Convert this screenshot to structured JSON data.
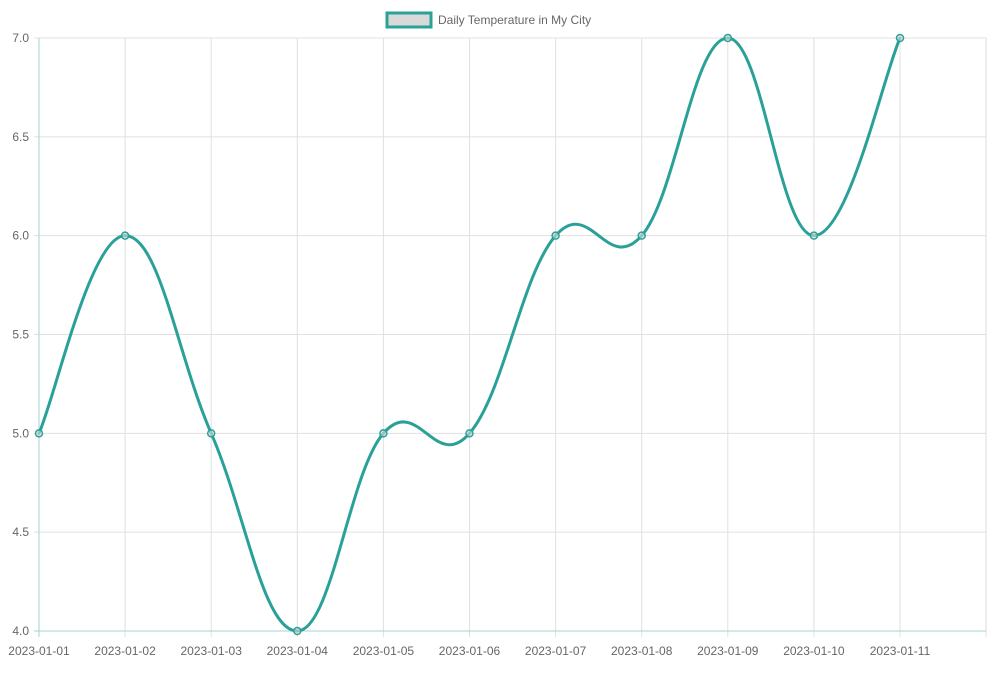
{
  "chart_data": {
    "type": "line",
    "title": "",
    "xlabel": "",
    "ylabel": "",
    "categories": [
      "2023-01-01",
      "2023-01-02",
      "2023-01-03",
      "2023-01-04",
      "2023-01-05",
      "2023-01-06",
      "2023-01-07",
      "2023-01-08",
      "2023-01-09",
      "2023-01-10",
      "2023-01-11"
    ],
    "series": [
      {
        "name": "Daily Temperature in My City",
        "values": [
          5,
          6,
          5,
          4,
          5,
          5,
          6,
          6,
          7,
          6,
          7
        ],
        "color": "#2aa198"
      }
    ],
    "ylim": [
      4.0,
      7.0
    ],
    "y_ticks": [
      "4.0",
      "4.5",
      "5.0",
      "5.5",
      "6.0",
      "6.5",
      "7.0"
    ],
    "grid": true,
    "legend_position": "top-center",
    "legend_swatch_fill": "#d9d9d9"
  }
}
